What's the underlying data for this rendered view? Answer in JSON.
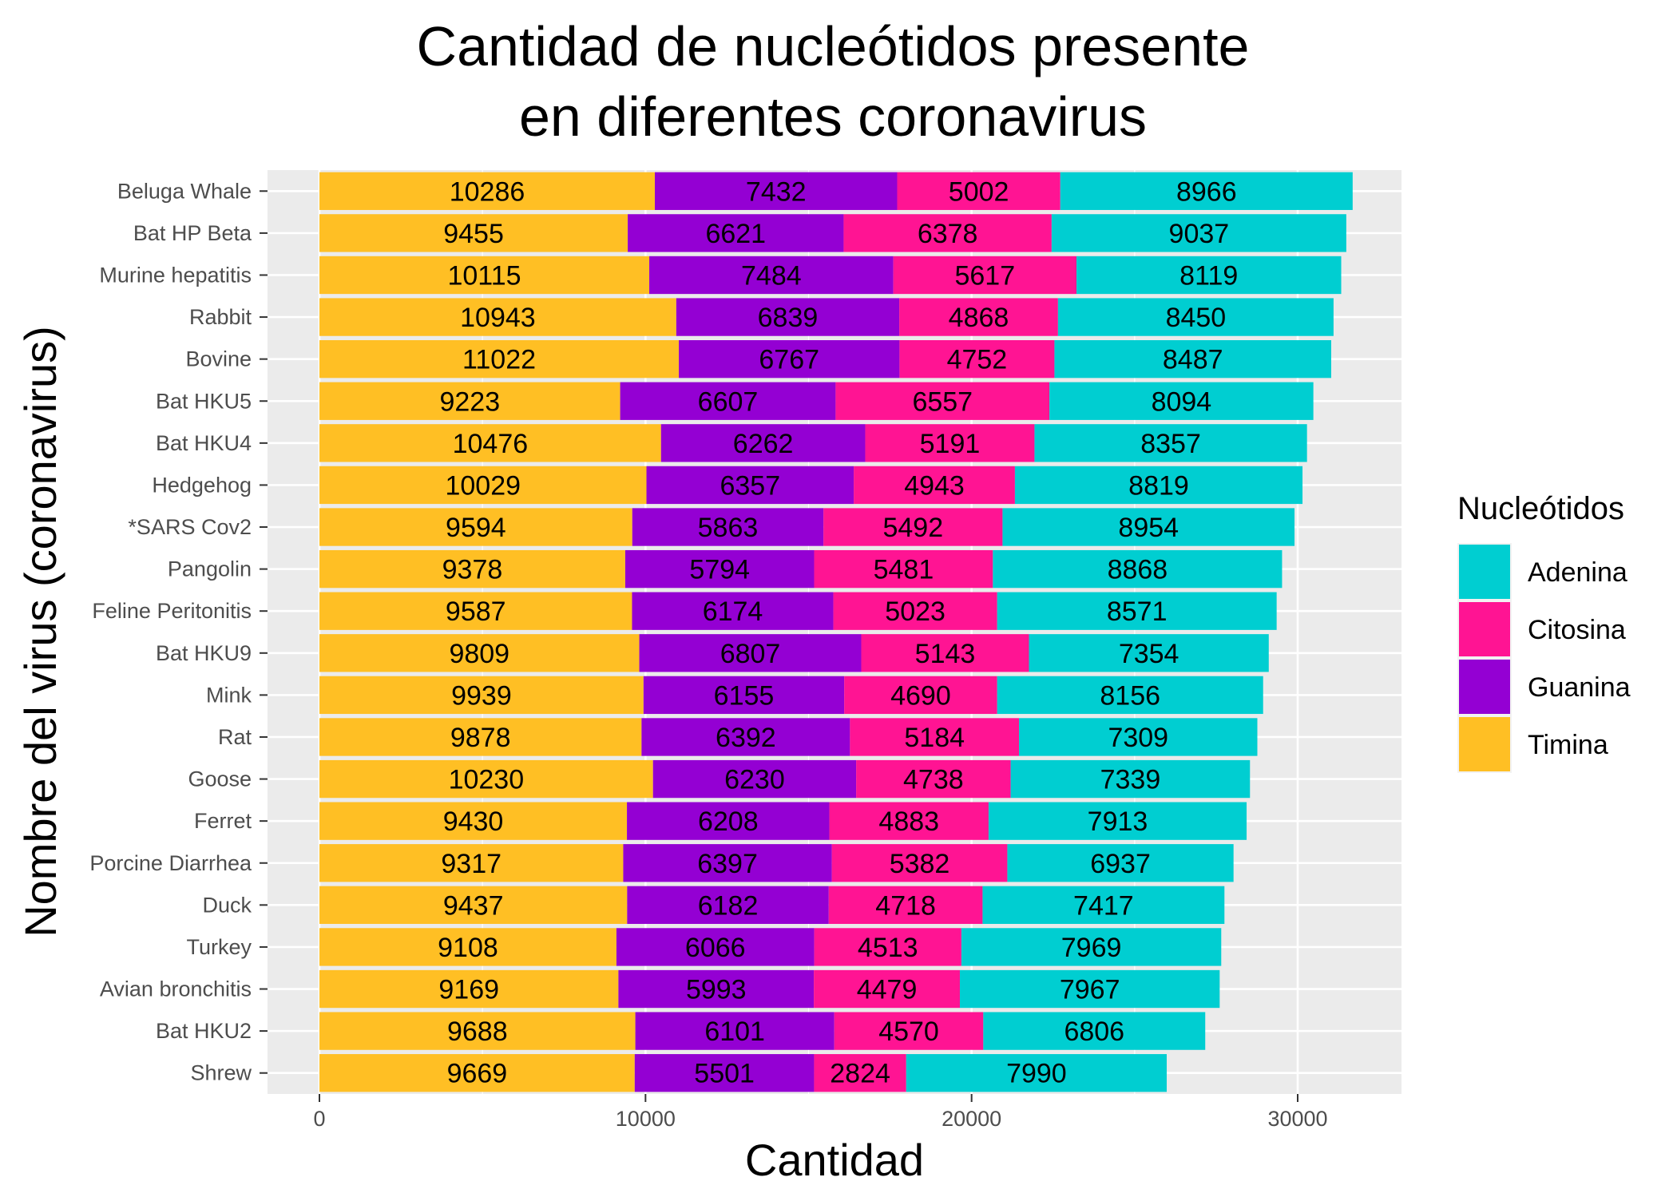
{
  "chart_data": {
    "type": "bar",
    "orientation": "horizontal",
    "stacked": true,
    "title_lines": [
      "Cantidad de nucleótidos presente",
      "en diferentes coronavirus"
    ],
    "xlabel": "Cantidad",
    "ylabel": "Nombre del virus (coronavirus)",
    "xlim": [
      0,
      33000
    ],
    "xticks": [
      0,
      10000,
      20000,
      30000
    ],
    "grid": true,
    "legend": {
      "title": "Nucleótidos",
      "position": "right",
      "entries": [
        {
          "name": "Adenina",
          "color": "#00CED1"
        },
        {
          "name": "Citosina",
          "color": "#FF1493"
        },
        {
          "name": "Guanina",
          "color": "#9400D3"
        },
        {
          "name": "Timina",
          "color": "#FFBF24"
        }
      ]
    },
    "stack_order": [
      "Timina",
      "Guanina",
      "Citosina",
      "Adenina"
    ],
    "categories": [
      "Beluga Whale",
      "Bat HP Beta",
      "Murine hepatitis",
      "Rabbit",
      "Bovine",
      "Bat HKU5",
      "Bat HKU4",
      "Hedgehog",
      "*SARS Cov2",
      "Pangolin",
      "Feline Peritonitis",
      "Bat HKU9",
      "Mink",
      "Rat",
      "Goose",
      "Ferret",
      "Porcine Diarrhea",
      "Duck",
      "Turkey",
      "Avian bronchitis",
      "Bat HKU2",
      "Shrew"
    ],
    "series": [
      {
        "name": "Timina",
        "color": "#FFBF24",
        "values": [
          10286,
          9455,
          10115,
          10943,
          11022,
          9223,
          10476,
          10029,
          9594,
          9378,
          9587,
          9809,
          9939,
          9878,
          10230,
          9430,
          9317,
          9437,
          9108,
          9169,
          9688,
          9669
        ]
      },
      {
        "name": "Guanina",
        "color": "#9400D3",
        "values": [
          7432,
          6621,
          7484,
          6839,
          6767,
          6607,
          6262,
          6357,
          5863,
          5794,
          6174,
          6807,
          6155,
          6392,
          6230,
          6208,
          6397,
          6182,
          6066,
          5993,
          6101,
          5501
        ]
      },
      {
        "name": "Citosina",
        "color": "#FF1493",
        "values": [
          5002,
          6378,
          5617,
          4868,
          4752,
          6557,
          5191,
          4943,
          5492,
          5481,
          5023,
          5143,
          4690,
          5184,
          4738,
          4883,
          5382,
          4718,
          4513,
          4479,
          4570,
          2824
        ]
      },
      {
        "name": "Adenina",
        "color": "#00CED1",
        "values": [
          8966,
          9037,
          8119,
          8450,
          8487,
          8094,
          8357,
          8819,
          8954,
          8868,
          8571,
          7354,
          8156,
          7309,
          7339,
          7913,
          6937,
          7417,
          7969,
          7967,
          6806,
          7990
        ]
      }
    ]
  }
}
